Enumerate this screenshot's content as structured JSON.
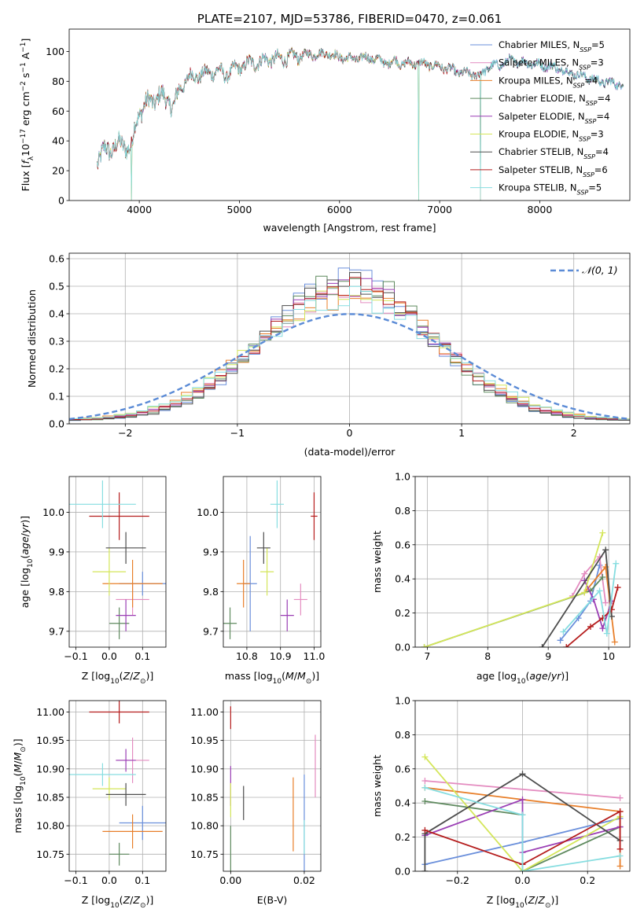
{
  "figure": {
    "background": "#ffffff"
  },
  "series": [
    {
      "name": "Chabrier MILES, N_SSP=5",
      "sub": "SSP",
      "main": "Chabrier MILES, N",
      "tail": "=5",
      "color": "#6a8fdb"
    },
    {
      "name": "Salpeter MILES, N_SSP=3",
      "sub": "SSP",
      "main": "Salpeter MILES, N",
      "tail": "=3",
      "color": "#e48cc0"
    },
    {
      "name": "Kroupa MILES, N_SSP=4",
      "sub": "SSP",
      "main": "Kroupa MILES, N",
      "tail": "=4",
      "color": "#e87f2a"
    },
    {
      "name": "Chabrier ELODIE, N_SSP=4",
      "sub": "SSP",
      "main": "Chabrier ELODIE, N",
      "tail": "=4",
      "color": "#5f8a5f"
    },
    {
      "name": "Salpeter ELODIE, N_SSP=4",
      "sub": "SSP",
      "main": "Salpeter ELODIE, N",
      "tail": "=4",
      "color": "#9b3fb5"
    },
    {
      "name": "Kroupa ELODIE, N_SSP=3",
      "sub": "SSP",
      "main": "Kroupa ELODIE, N",
      "tail": "=3",
      "color": "#d4e65a"
    },
    {
      "name": "Chabrier STELIB, N_SSP=4",
      "sub": "SSP",
      "main": "Chabrier STELIB, N",
      "tail": "=4",
      "color": "#4d4d4d"
    },
    {
      "name": "Salpeter STELIB, N_SSP=6",
      "sub": "SSP",
      "main": "Salpeter STELIB, N",
      "tail": "=6",
      "color": "#b51d1d"
    },
    {
      "name": "Kroupa STELIB, N_SSP=5",
      "sub": "SSP",
      "main": "Kroupa STELIB, N",
      "tail": "=5",
      "color": "#86dde0"
    }
  ],
  "chart_data": [
    {
      "id": "spectrum",
      "type": "line",
      "title": "PLATE=2107, MJD=53786, FIBERID=0470, z=0.061",
      "xlabel": "wavelength [Angstrom, rest frame]",
      "ylabel": "Flux [f_λ 10^-17 erg cm^-2 s^-1 A^-1]",
      "xlim": [
        3300,
        8900
      ],
      "ylim": [
        0,
        115
      ],
      "xticks": [
        4000,
        5000,
        6000,
        7000,
        8000
      ],
      "yticks": [
        0,
        20,
        40,
        60,
        80,
        100
      ],
      "legend": "top-right",
      "spectrum_knots": {
        "x": [
          3580,
          3650,
          3750,
          3850,
          3920,
          3960,
          4000,
          4100,
          4200,
          4300,
          4350,
          4400,
          4500,
          4600,
          4700,
          4800,
          4860,
          4950,
          5100,
          5200,
          5300,
          5400,
          5500,
          5600,
          5700,
          5800,
          5890,
          5950,
          6100,
          6300,
          6500,
          6563,
          6600,
          6800,
          7000,
          7100,
          7200,
          7400,
          7500,
          7600,
          7700,
          7900,
          8100,
          8200,
          8400,
          8600,
          8800
        ],
        "y": [
          27,
          33,
          36,
          38,
          34,
          50,
          60,
          66,
          70,
          67,
          62,
          75,
          83,
          84,
          86,
          87,
          84,
          88,
          92,
          93,
          95,
          95,
          96,
          97,
          98,
          98,
          99,
          97,
          95,
          96,
          92,
          94,
          92,
          92,
          90,
          88,
          86,
          84,
          90,
          91,
          94,
          92,
          90,
          88,
          84,
          80,
          78
        ]
      },
      "dropouts": [
        3920,
        6790,
        7410
      ]
    },
    {
      "id": "residual-histogram",
      "type": "bar",
      "xlabel": "(data-model)/error",
      "ylabel": "Normed distribution",
      "xlim": [
        -2.5,
        2.5
      ],
      "ylim": [
        0,
        0.62
      ],
      "xticks": [
        -2,
        -1,
        0,
        1,
        2
      ],
      "yticks": [
        0.0,
        0.1,
        0.2,
        0.3,
        0.4,
        0.5,
        0.6
      ],
      "legend": "top-right",
      "reference_curve": {
        "label": "N(0,1)",
        "color": "#5b8bd6"
      },
      "bin_width": 0.1,
      "bin_start": -2.5,
      "bin_count": 50
    },
    {
      "id": "age-vs-Z",
      "type": "scatter",
      "xlabel": "Z [log10(Z/Z⊙)]",
      "ylabel": "age [log10(age/yr)]",
      "xlim": [
        -0.12,
        0.17
      ],
      "ylim": [
        9.66,
        10.09
      ],
      "xticks": [
        -0.1,
        0.0,
        0.1
      ],
      "yticks": [
        9.7,
        9.8,
        9.9,
        10.0
      ],
      "points": [
        {
          "series": 0,
          "x": 0.1,
          "xerr": 0.07,
          "y": 9.82,
          "yerr": 0.03
        },
        {
          "series": 1,
          "x": 0.07,
          "xerr": 0.05,
          "y": 9.78,
          "yerr": 0.04
        },
        {
          "series": 2,
          "x": 0.07,
          "xerr": 0.09,
          "y": 9.82,
          "yerr": 0.06
        },
        {
          "series": 3,
          "x": 0.03,
          "xerr": 0.03,
          "y": 9.72,
          "yerr": 0.04
        },
        {
          "series": 4,
          "x": 0.05,
          "xerr": 0.03,
          "y": 9.74,
          "yerr": 0.04
        },
        {
          "series": 5,
          "x": 0.0,
          "xerr": 0.05,
          "y": 9.85,
          "yerr": 0.06
        },
        {
          "series": 6,
          "x": 0.05,
          "xerr": 0.06,
          "y": 9.91,
          "yerr": 0.04
        },
        {
          "series": 7,
          "x": 0.03,
          "xerr": 0.09,
          "y": 9.99,
          "yerr": 0.06
        },
        {
          "series": 8,
          "x": -0.02,
          "xerr": 0.1,
          "y": 10.02,
          "yerr": 0.06
        }
      ]
    },
    {
      "id": "age-vs-mass",
      "type": "scatter",
      "xlabel": "mass [log10(M/M⊙)]",
      "ylabel": "",
      "xlim": [
        10.73,
        11.02
      ],
      "ylim": [
        9.66,
        10.09
      ],
      "xticks": [
        10.8,
        10.9,
        11.0
      ],
      "yticks": [
        9.7,
        9.8,
        9.9,
        10.0
      ],
      "points": [
        {
          "series": 0,
          "x": 10.81,
          "xerr": 0.02,
          "y": 9.82,
          "yerr": 0.12
        },
        {
          "series": 1,
          "x": 10.96,
          "xerr": 0.02,
          "y": 9.78,
          "yerr": 0.04
        },
        {
          "series": 2,
          "x": 10.79,
          "xerr": 0.02,
          "y": 9.82,
          "yerr": 0.06
        },
        {
          "series": 3,
          "x": 10.75,
          "xerr": 0.02,
          "y": 9.72,
          "yerr": 0.04
        },
        {
          "series": 4,
          "x": 10.92,
          "xerr": 0.02,
          "y": 9.74,
          "yerr": 0.04
        },
        {
          "series": 5,
          "x": 10.86,
          "xerr": 0.02,
          "y": 9.85,
          "yerr": 0.06
        },
        {
          "series": 6,
          "x": 10.85,
          "xerr": 0.02,
          "y": 9.91,
          "yerr": 0.04
        },
        {
          "series": 7,
          "x": 11.0,
          "xerr": 0.01,
          "y": 9.99,
          "yerr": 0.06
        },
        {
          "series": 8,
          "x": 10.89,
          "xerr": 0.02,
          "y": 10.02,
          "yerr": 0.06
        }
      ]
    },
    {
      "id": "weight-vs-age",
      "type": "line",
      "xlabel": "age [log10(age/yr)]",
      "ylabel": "mass weight",
      "xlim": [
        6.8,
        10.35
      ],
      "ylim": [
        0,
        1.0
      ],
      "xticks": [
        7,
        8,
        9,
        10
      ],
      "yticks": [
        0.0,
        0.2,
        0.4,
        0.6,
        0.8,
        1.0
      ],
      "lines": [
        {
          "series": 0,
          "x": [
            9.2,
            9.5,
            9.7,
            9.85
          ],
          "y": [
            0.04,
            0.17,
            0.27,
            0.48
          ]
        },
        {
          "series": 1,
          "x": [
            9.4,
            9.6,
            9.85,
            9.95
          ],
          "y": [
            0.3,
            0.43,
            0.53,
            0.26
          ]
        },
        {
          "series": 2,
          "x": [
            9.6,
            9.95,
            10.1
          ],
          "y": [
            0.32,
            0.47,
            0.03
          ]
        },
        {
          "series": 3,
          "x": [
            6.95,
            9.7,
            9.9
          ],
          "y": [
            0.0,
            0.33,
            0.41
          ]
        },
        {
          "series": 4,
          "x": [
            9.6,
            9.75,
            9.9,
            10.05
          ],
          "y": [
            0.39,
            0.28,
            0.11,
            0.27
          ]
        },
        {
          "series": 5,
          "x": [
            6.95,
            9.6,
            9.9
          ],
          "y": [
            0.0,
            0.32,
            0.67
          ]
        },
        {
          "series": 6,
          "x": [
            8.9,
            9.95,
            10.05
          ],
          "y": [
            0.0,
            0.57,
            0.18
          ]
        },
        {
          "series": 7,
          "x": [
            9.3,
            9.7,
            9.9,
            10.05,
            10.15
          ],
          "y": [
            0.0,
            0.12,
            0.17,
            0.22,
            0.35
          ]
        },
        {
          "series": 8,
          "x": [
            9.25,
            9.85,
            9.97,
            10.12
          ],
          "y": [
            0.09,
            0.33,
            0.08,
            0.49
          ]
        }
      ]
    },
    {
      "id": "mass-vs-Z",
      "type": "scatter",
      "xlabel": "Z [log10(Z/Z⊙)]",
      "ylabel": "mass [log10(M/M⊙)]",
      "xlim": [
        -0.12,
        0.17
      ],
      "ylim": [
        10.72,
        11.02
      ],
      "xticks": [
        -0.1,
        0.0,
        0.1
      ],
      "yticks": [
        10.75,
        10.8,
        10.85,
        10.9,
        10.95,
        11.0
      ],
      "points": [
        {
          "series": 0,
          "x": 0.1,
          "xerr": 0.07,
          "y": 10.805,
          "yerr": 0.03
        },
        {
          "series": 1,
          "x": 0.07,
          "xerr": 0.05,
          "y": 10.915,
          "yerr": 0.04
        },
        {
          "series": 2,
          "x": 0.07,
          "xerr": 0.09,
          "y": 10.79,
          "yerr": 0.03
        },
        {
          "series": 3,
          "x": 0.03,
          "xerr": 0.03,
          "y": 10.75,
          "yerr": 0.02
        },
        {
          "series": 4,
          "x": 0.05,
          "xerr": 0.03,
          "y": 10.915,
          "yerr": 0.02
        },
        {
          "series": 5,
          "x": 0.0,
          "xerr": 0.05,
          "y": 10.865,
          "yerr": 0.02
        },
        {
          "series": 6,
          "x": 0.05,
          "xerr": 0.06,
          "y": 10.855,
          "yerr": 0.02
        },
        {
          "series": 7,
          "x": 0.03,
          "xerr": 0.09,
          "y": 11.0,
          "yerr": 0.02
        },
        {
          "series": 8,
          "x": -0.02,
          "xerr": 0.1,
          "y": 10.89,
          "yerr": 0.02
        }
      ]
    },
    {
      "id": "mass-vs-EBV",
      "type": "scatter",
      "xlabel": "E(B-V)",
      "ylabel": "",
      "xlim": [
        -0.002,
        0.0245
      ],
      "ylim": [
        10.72,
        11.02
      ],
      "xticks": [
        0.0,
        0.02
      ],
      "yticks": [
        10.75,
        10.8,
        10.85,
        10.9,
        10.95,
        11.0
      ],
      "points": [
        {
          "series": 0,
          "x": 0.02,
          "y": 10.805,
          "yerr": 0.085
        },
        {
          "series": 1,
          "x": 0.023,
          "y": 10.905,
          "yerr": 0.055
        },
        {
          "series": 2,
          "x": 0.017,
          "y": 10.82,
          "yerr": 0.065
        },
        {
          "series": 3,
          "x": 0.0,
          "y": 10.755,
          "yerr": 0.045
        },
        {
          "series": 4,
          "x": 0.0,
          "y": 10.87,
          "yerr": 0.035
        },
        {
          "series": 5,
          "x": 0.0,
          "y": 10.845,
          "yerr": 0.03
        },
        {
          "series": 6,
          "x": 0.0035,
          "y": 10.84,
          "yerr": 0.03
        },
        {
          "series": 7,
          "x": 0.0,
          "y": 10.99,
          "yerr": 0.02
        },
        {
          "series": 8,
          "x": 0.02,
          "y": 10.78,
          "yerr": 0.03
        }
      ]
    },
    {
      "id": "weight-vs-Z",
      "type": "line",
      "xlabel": "Z [log10(Z/Z⊙)]",
      "ylabel": "mass weight",
      "xlim": [
        -0.33,
        0.33
      ],
      "ylim": [
        0,
        1.0
      ],
      "xticks": [
        -0.2,
        0.0,
        0.2
      ],
      "yticks": [
        0.0,
        0.2,
        0.4,
        0.6,
        0.8,
        1.0
      ],
      "lines": [
        {
          "series": 0,
          "x": [
            -0.3,
            0.0,
            0.3
          ],
          "y": [
            0.04,
            0.17,
            0.31
          ]
        },
        {
          "series": 1,
          "x": [
            -0.3,
            0.3
          ],
          "y": [
            0.53,
            0.43
          ]
        },
        {
          "series": 2,
          "x": [
            -0.3,
            0.3,
            0.3
          ],
          "y": [
            0.49,
            0.35,
            0.03
          ]
        },
        {
          "series": 3,
          "x": [
            -0.3,
            0.0,
            0.0,
            0.3
          ],
          "y": [
            0.41,
            0.33,
            0.0,
            0.26
          ]
        },
        {
          "series": 4,
          "x": [
            -0.3,
            0.0,
            0.0,
            0.3
          ],
          "y": [
            0.21,
            0.42,
            0.11,
            0.26
          ]
        },
        {
          "series": 5,
          "x": [
            -0.3,
            0.0,
            0.3
          ],
          "y": [
            0.67,
            0.0,
            0.32
          ]
        },
        {
          "series": 6,
          "x": [
            -0.3,
            -0.3,
            0.0,
            0.3
          ],
          "y": [
            0.0,
            0.22,
            0.57,
            0.18
          ]
        },
        {
          "series": 7,
          "x": [
            -0.3,
            0.0,
            0.3,
            0.3
          ],
          "y": [
            0.24,
            0.04,
            0.35,
            0.13
          ]
        },
        {
          "series": 8,
          "x": [
            -0.3,
            0.0,
            0.0,
            0.3
          ],
          "y": [
            0.49,
            0.33,
            0.0,
            0.09
          ]
        }
      ]
    }
  ]
}
